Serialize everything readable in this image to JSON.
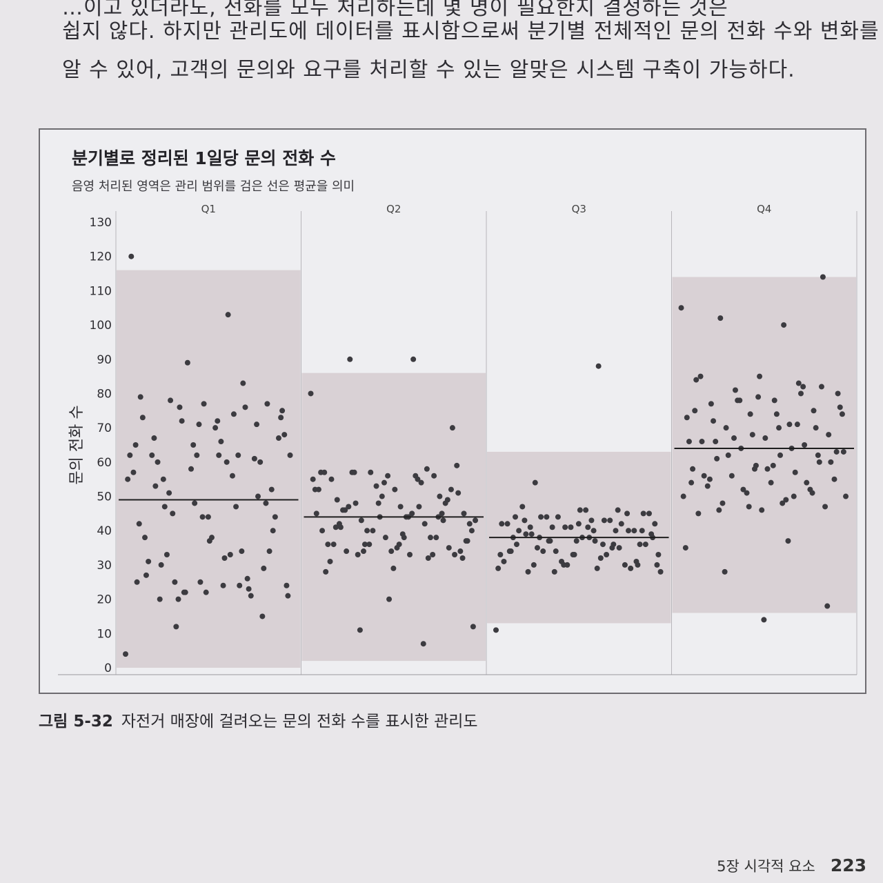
{
  "paragraph": {
    "line0": "…이고 있더라도, 전화를 모두 처리하는데 몇 명이 필요한지 결정하는 것은",
    "line1": "쉽지 않다. 하지만 관리도에 데이터를 표시함으로써 분기별 전체적인 문의 전화 수와 변화를",
    "line2": "알 수 있어, 고객의 문의와 요구를 처리할 수 있는 알맞은 시스템 구축이 가능하다."
  },
  "chart_data": {
    "type": "scatter",
    "title": "분기별로 정리된 1일당 문의 전화 수",
    "subtitle": "음영 처리된 영역은 관리 범위를 검은 선은 평균을 의미",
    "ylabel": "문의 전화 수",
    "ylim": [
      0,
      130
    ],
    "yticks": [
      0,
      10,
      20,
      30,
      40,
      50,
      60,
      70,
      80,
      90,
      100,
      110,
      120,
      130
    ],
    "grid": false,
    "shade_color": "#d9d1d5",
    "line_color": "#1e1e1e",
    "point_color": "#3c3b40",
    "panels": [
      {
        "label": "Q1",
        "mean": 49,
        "lower": 0,
        "upper": 116,
        "y": [
          4,
          103,
          47,
          77,
          77,
          79,
          83,
          76,
          75,
          62,
          53,
          50,
          48,
          120,
          74,
          78,
          40,
          37,
          27,
          23,
          22,
          21,
          32,
          30,
          29,
          25,
          25,
          24,
          12,
          67,
          70,
          62,
          61,
          58,
          55,
          33,
          33,
          34,
          22,
          73,
          76,
          72,
          68,
          66,
          60,
          60,
          62,
          57,
          47,
          45,
          44,
          38,
          31,
          21,
          89,
          62,
          60,
          55,
          48,
          44,
          42,
          34,
          20,
          73,
          72,
          67,
          71,
          65,
          62,
          56,
          51,
          52,
          44,
          38,
          26,
          22,
          24,
          24,
          20,
          15,
          71,
          65,
          62,
          25
        ]
      },
      {
        "label": "Q2",
        "mean": 44,
        "lower": 2,
        "upper": 86,
        "y": [
          80,
          90,
          90,
          70,
          20,
          28,
          32,
          36,
          37,
          38,
          41,
          43,
          44,
          45,
          47,
          48,
          51,
          52,
          55,
          56,
          57,
          12,
          33,
          34,
          35,
          38,
          40,
          42,
          43,
          45,
          47,
          49,
          50,
          53,
          55,
          56,
          57,
          33,
          34,
          36,
          38,
          40,
          42,
          44,
          46,
          48,
          50,
          52,
          54,
          33,
          34,
          35,
          36,
          38,
          40,
          43,
          45,
          47,
          52,
          56,
          57,
          58,
          34,
          37,
          39,
          42,
          45,
          48,
          52,
          55,
          57,
          59,
          29,
          31,
          33,
          36,
          40,
          44,
          46,
          49,
          54,
          57,
          7,
          11,
          32,
          36,
          41,
          44
        ]
      },
      {
        "label": "Q3",
        "mean": 38,
        "lower": 13,
        "upper": 63,
        "y": [
          11,
          88,
          54,
          30,
          33,
          34,
          36,
          37,
          38,
          38,
          39,
          40,
          41,
          42,
          43,
          44,
          45,
          46,
          36,
          35,
          34,
          33,
          37,
          39,
          40,
          41,
          42,
          43,
          44,
          45,
          46,
          47,
          30,
          31,
          29,
          32,
          35,
          36,
          37,
          38,
          40,
          41,
          42,
          43,
          28,
          29,
          30,
          31,
          33,
          34,
          36,
          38,
          40,
          42,
          44,
          28,
          29,
          30,
          31,
          33,
          34,
          35,
          37,
          39,
          41,
          43,
          45,
          30,
          33,
          36,
          38,
          40,
          42,
          44,
          46,
          28,
          30,
          40,
          41
        ]
      },
      {
        "label": "Q4",
        "mean": 64,
        "lower": 16,
        "upper": 114,
        "y": [
          105,
          100,
          102,
          114,
          85,
          84,
          83,
          81,
          80,
          78,
          77,
          75,
          74,
          73,
          71,
          70,
          68,
          67,
          66,
          65,
          64,
          63,
          62,
          61,
          60,
          59,
          58,
          57,
          56,
          55,
          54,
          53,
          52,
          51,
          50,
          49,
          48,
          47,
          46,
          45,
          80,
          78,
          76,
          74,
          72,
          70,
          68,
          66,
          64,
          62,
          60,
          58,
          56,
          54,
          52,
          50,
          48,
          46,
          82,
          79,
          75,
          71,
          67,
          63,
          59,
          55,
          51,
          47,
          35,
          37,
          28,
          18,
          14,
          85,
          82,
          78,
          74,
          70,
          66,
          62,
          58,
          54,
          50
        ]
      }
    ]
  },
  "caption": {
    "num": "그림 5-32",
    "text": "자전거 매장에 걸려오는 문의 전화 수를 표시한 관리도"
  },
  "footer": {
    "chapter": "5장 시각적 요소",
    "page": "223"
  }
}
